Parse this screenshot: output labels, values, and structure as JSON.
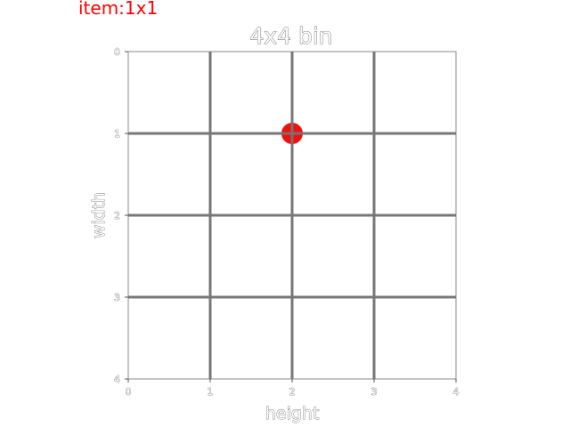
{
  "item_label": "item:1x1",
  "bin": {
    "title": "4x4 bin",
    "xlabel": "height",
    "ylabel": "width",
    "rows": 4,
    "cols": 4,
    "x_ticks": [
      "0",
      "1",
      "2",
      "3",
      "4"
    ],
    "y_ticks": [
      "0",
      "1",
      "2",
      "3",
      "4"
    ],
    "xlim": [
      0,
      4
    ],
    "ylim": [
      0,
      4
    ],
    "y_axis_inverted": true,
    "grid": true
  },
  "marker": {
    "x": 2,
    "y": 1,
    "color": "#ee1111"
  },
  "colors": {
    "item_label": "#ff0000",
    "grid_line": "#777777",
    "frame": "#888888"
  }
}
